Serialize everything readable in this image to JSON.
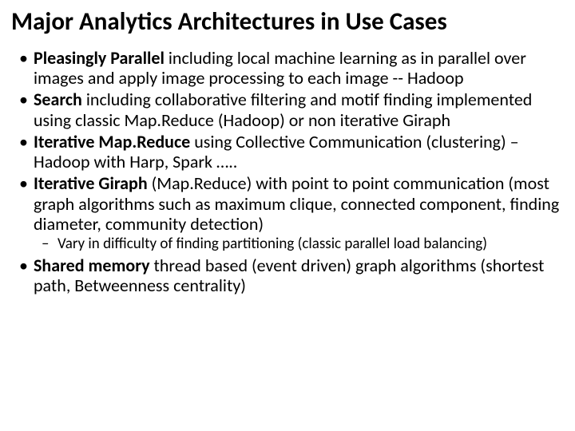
{
  "title": "Major Analytics Architectures in Use Cases",
  "bullets": {
    "b1_bold": "Pleasingly Parallel",
    "b1_rest": " including local machine learning as in parallel over images and apply image processing to each image -- Hadoop",
    "b2_bold": "Search",
    "b2_rest": " including collaborative filtering and motif finding implemented using classic Map.Reduce (Hadoop) or non iterative Giraph",
    "b3_bold": "Iterative Map.Reduce",
    "b3_rest": " using Collective Communication (clustering) – Hadoop with Harp, Spark …..",
    "b4_bold": "Iterative Giraph",
    "b4_rest": " (Map.Reduce) with point to point communication (most graph algorithms such as maximum clique, connected component, finding diameter, community detection)",
    "b4_sub1": "Vary in difficulty of finding partitioning (classic parallel load balancing)",
    "b5_bold": "Shared memory",
    "b5_rest": " thread based (event driven) graph algorithms (shortest path, Betweenness centrality)"
  },
  "style": {
    "background_color": "#ffffff",
    "text_color": "#000000",
    "title_fontsize": 31,
    "body_fontsize": 22,
    "sub_fontsize": 19,
    "font_family": "Calibri"
  }
}
